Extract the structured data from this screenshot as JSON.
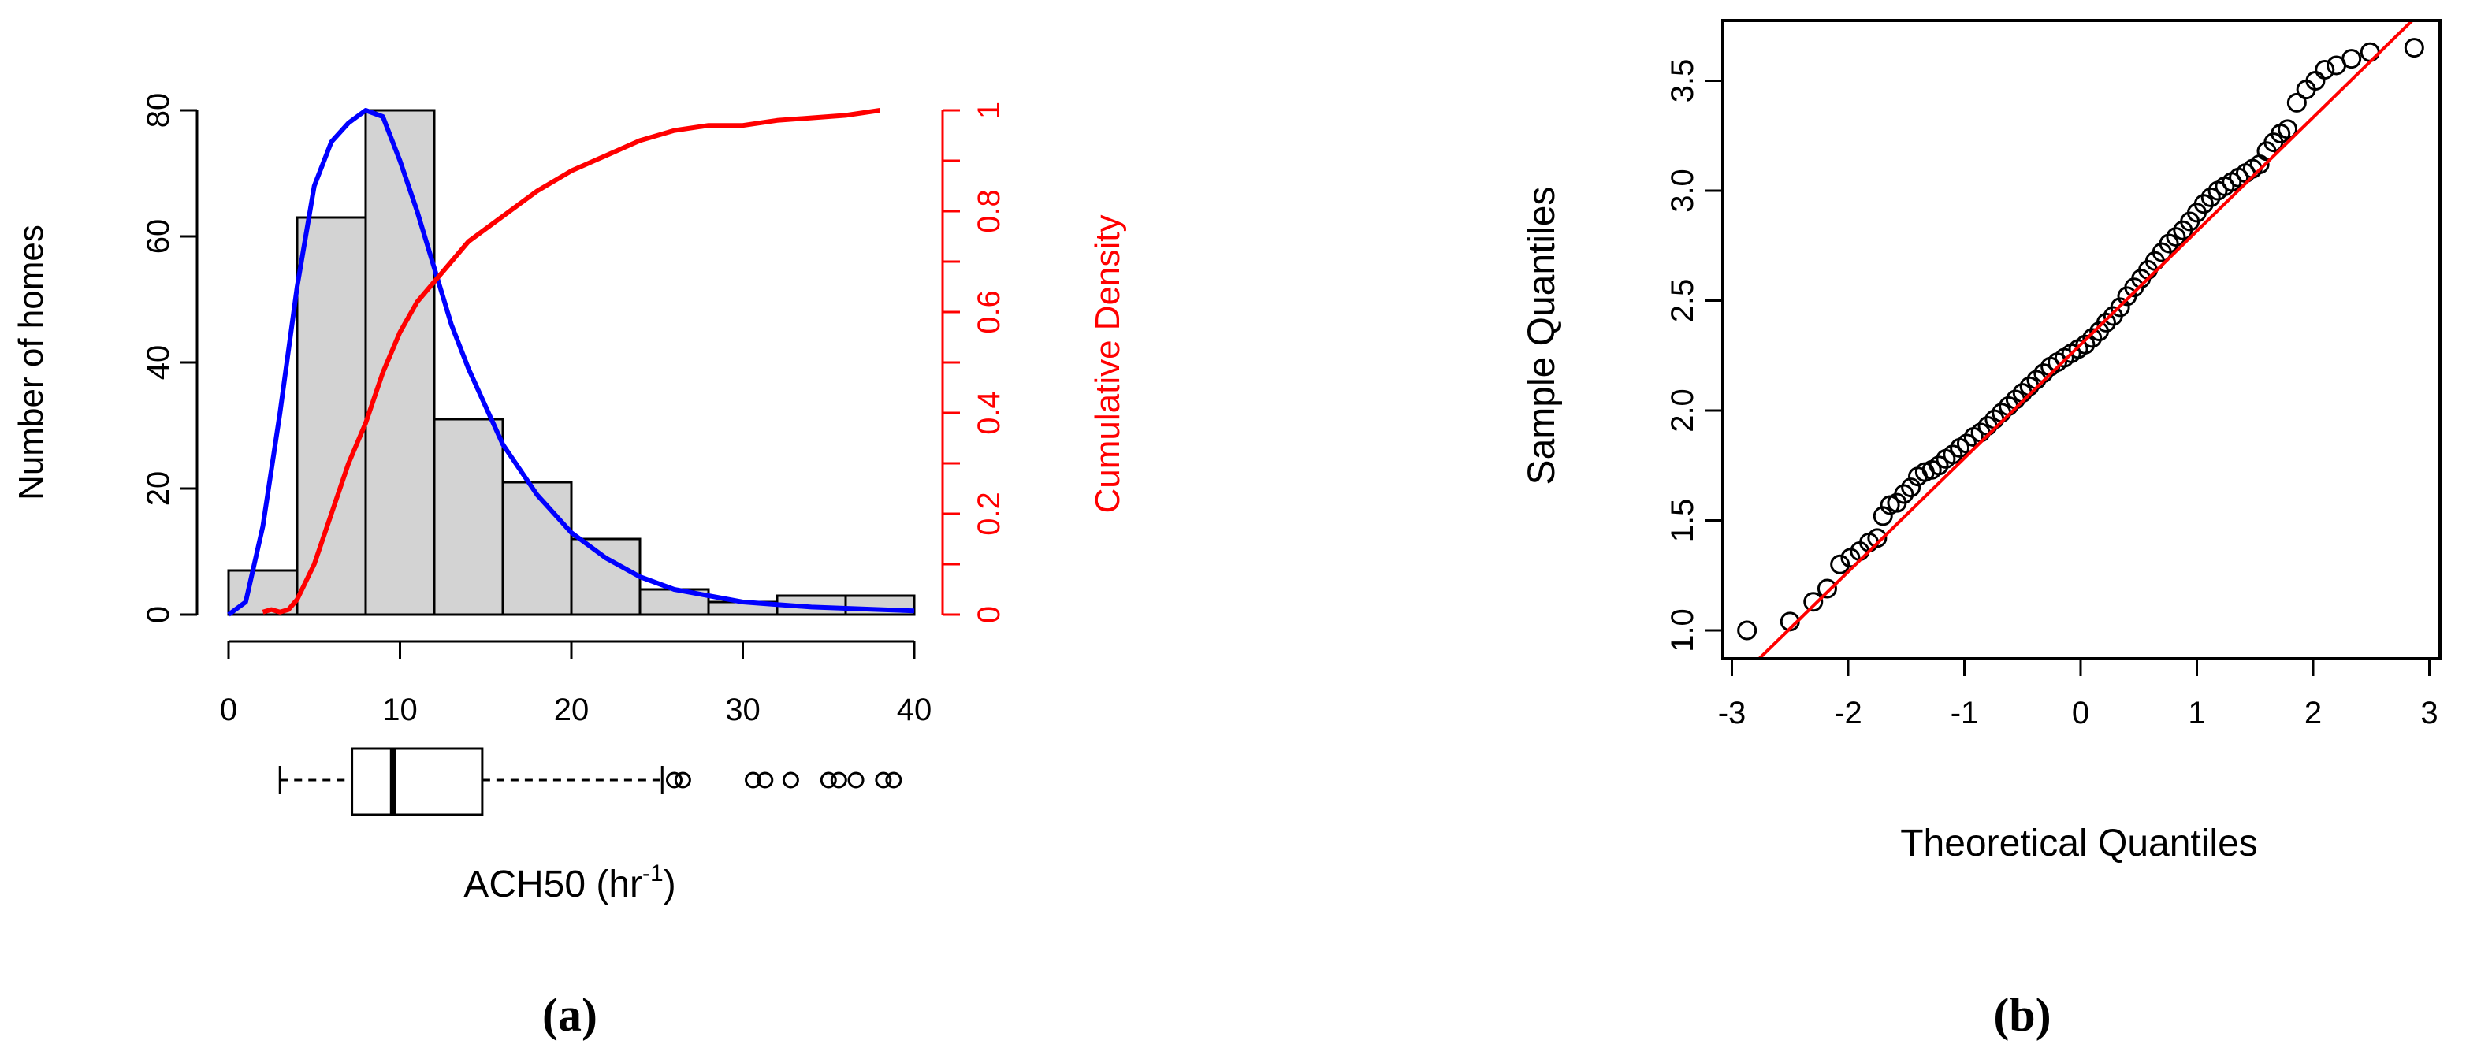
{
  "colors": {
    "bar_fill": "#d3d3d3",
    "axis": "#000000",
    "pdf_curve": "#0000ff",
    "cdf_curve": "#ff0000",
    "qq_line": "#ff0000",
    "points": "#000000"
  },
  "chart_data": [
    {
      "type": "bar",
      "subtype": "histogram",
      "panel_label": "(a)",
      "xlabel": {
        "main": "ACH50 (hr",
        "sup": "-1",
        "tail": ")"
      },
      "ylabel": "Number of homes",
      "ylabel_right": "Cumulative Density",
      "xlim": [
        0,
        40
      ],
      "ylim": [
        0,
        80
      ],
      "ylim_right": [
        0,
        1
      ],
      "x_ticks": [
        "0",
        "10",
        "20",
        "30",
        "40"
      ],
      "y_ticks": [
        "0",
        "20",
        "40",
        "60",
        "80"
      ],
      "y_right_ticks": [
        "0",
        "0.2",
        "0.4",
        "0.6",
        "0.8",
        "1"
      ],
      "bins": [
        {
          "x0": 0,
          "x1": 4,
          "count": 7
        },
        {
          "x0": 4,
          "x1": 8,
          "count": 63
        },
        {
          "x0": 8,
          "x1": 12,
          "count": 80
        },
        {
          "x0": 12,
          "x1": 16,
          "count": 31
        },
        {
          "x0": 16,
          "x1": 20,
          "count": 21
        },
        {
          "x0": 20,
          "x1": 24,
          "count": 12
        },
        {
          "x0": 24,
          "x1": 28,
          "count": 4
        },
        {
          "x0": 28,
          "x1": 32,
          "count": 2
        },
        {
          "x0": 32,
          "x1": 36,
          "count": 3
        },
        {
          "x0": 36,
          "x1": 40,
          "count": 3
        }
      ],
      "series": [
        {
          "axis": "left",
          "color": "blue",
          "x": [
            0,
            1,
            2,
            3,
            4,
            5,
            6,
            7,
            8,
            9,
            10,
            11,
            12,
            13,
            14,
            15,
            16,
            18,
            20,
            22,
            24,
            26,
            28,
            30,
            32,
            34,
            36,
            38,
            40
          ],
          "y": [
            0,
            2,
            14,
            32,
            52,
            68,
            75,
            78,
            80,
            79,
            72,
            64,
            55,
            46,
            39,
            33,
            27,
            19,
            13,
            9,
            6,
            4,
            3,
            2,
            1.6,
            1.2,
            1,
            0.8,
            0.6
          ]
        },
        {
          "axis": "right",
          "color": "red",
          "x": [
            2,
            2.5,
            3,
            3.5,
            4,
            5,
            6,
            7,
            8,
            9,
            10,
            11,
            12,
            13,
            14,
            16,
            18,
            20,
            22,
            24,
            26,
            28,
            30,
            32,
            34,
            36,
            38
          ],
          "y": [
            0.005,
            0.01,
            0.005,
            0.01,
            0.03,
            0.1,
            0.2,
            0.3,
            0.38,
            0.48,
            0.56,
            0.62,
            0.66,
            0.7,
            0.74,
            0.79,
            0.84,
            0.88,
            0.91,
            0.94,
            0.96,
            0.97,
            0.97,
            0.98,
            0.985,
            0.99,
            1.0
          ]
        }
      ],
      "boxplot": {
        "whisker_low": 3,
        "q1": 7.2,
        "median": 9.6,
        "q3": 14.8,
        "whisker_high": 25.3,
        "outliers": [
          26.0,
          26.5,
          30.6,
          31.3,
          32.8,
          35.0,
          35.6,
          36.6,
          38.2,
          38.8
        ]
      }
    },
    {
      "type": "scatter",
      "subtype": "qq-plot",
      "panel_label": "(b)",
      "xlabel": "Theoretical Quantiles",
      "ylabel": "Sample Quantiles",
      "xlim": [
        -3,
        3
      ],
      "ylim": [
        1,
        3.7
      ],
      "x_ticks": [
        "-3",
        "-2",
        "-1",
        "0",
        "1",
        "2",
        "3"
      ],
      "y_ticks": [
        "1.0",
        "1.5",
        "2.0",
        "2.5",
        "3.0",
        "3.5"
      ],
      "reference_line": {
        "x": [
          -3,
          3
        ],
        "y": [
          0.75,
          3.85
        ]
      },
      "points_x": [
        -2.87,
        -2.5,
        -2.3,
        -2.18,
        -2.07,
        -1.98,
        -1.9,
        -1.82,
        -1.75,
        -1.7,
        -1.64,
        -1.58,
        -1.52,
        -1.46,
        -1.4,
        -1.34,
        -1.28,
        -1.22,
        -1.16,
        -1.1,
        -1.04,
        -0.98,
        -0.92,
        -0.86,
        -0.8,
        -0.74,
        -0.68,
        -0.62,
        -0.56,
        -0.5,
        -0.44,
        -0.38,
        -0.32,
        -0.26,
        -0.2,
        -0.14,
        -0.08,
        -0.02,
        0.04,
        0.1,
        0.16,
        0.22,
        0.28,
        0.34,
        0.4,
        0.46,
        0.52,
        0.58,
        0.64,
        0.7,
        0.76,
        0.82,
        0.88,
        0.94,
        1.0,
        1.06,
        1.12,
        1.18,
        1.24,
        1.3,
        1.36,
        1.42,
        1.48,
        1.54,
        1.6,
        1.66,
        1.72,
        1.78,
        1.86,
        1.94,
        2.02,
        2.1,
        2.2,
        2.33,
        2.49,
        2.87
      ],
      "points_y": [
        1.0,
        1.04,
        1.13,
        1.19,
        1.3,
        1.33,
        1.36,
        1.4,
        1.42,
        1.52,
        1.57,
        1.58,
        1.62,
        1.65,
        1.7,
        1.72,
        1.73,
        1.75,
        1.78,
        1.8,
        1.83,
        1.85,
        1.88,
        1.9,
        1.93,
        1.96,
        1.99,
        2.02,
        2.05,
        2.08,
        2.11,
        2.14,
        2.17,
        2.2,
        2.22,
        2.24,
        2.26,
        2.28,
        2.3,
        2.33,
        2.36,
        2.4,
        2.43,
        2.47,
        2.52,
        2.56,
        2.6,
        2.64,
        2.68,
        2.72,
        2.76,
        2.79,
        2.82,
        2.86,
        2.9,
        2.94,
        2.97,
        3.0,
        3.02,
        3.04,
        3.06,
        3.08,
        3.1,
        3.12,
        3.18,
        3.22,
        3.26,
        3.28,
        3.4,
        3.46,
        3.5,
        3.55,
        3.57,
        3.6,
        3.63,
        3.65
      ]
    }
  ]
}
